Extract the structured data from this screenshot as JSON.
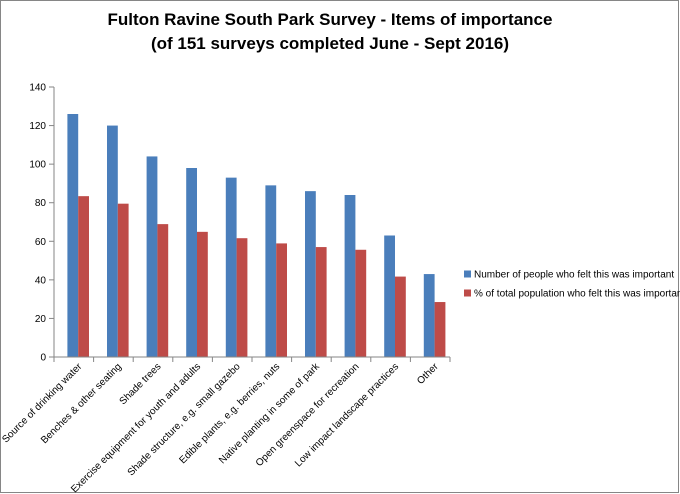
{
  "chart_data": {
    "type": "bar",
    "title_lines": [
      "Fulton Ravine South Park Survey - Items of importance",
      "(of 151 surveys completed June - Sept 2016)"
    ],
    "categories": [
      "Source of drinking water",
      "Benches & other seating",
      "Shade trees",
      "Exercise equipment for youth and adults",
      "Shade structure, e.g. small gazebo",
      "Edible plants, e.g. berries, nuts",
      "Native planting in some of park",
      "Open greenspace for recreation",
      "Low impact landscape practices",
      "Other"
    ],
    "series": [
      {
        "name": "Number of people who felt this was important",
        "color": "#4a7ebb",
        "values": [
          126,
          120,
          104,
          98,
          93,
          89,
          86,
          84,
          63,
          43
        ]
      },
      {
        "name": "% of total population who felt this was important",
        "color": "#be4b48",
        "values": [
          83.4,
          79.5,
          68.9,
          64.9,
          61.6,
          58.9,
          57.0,
          55.6,
          41.7,
          28.5
        ]
      }
    ],
    "y_ticks": [
      "0",
      "20",
      "40",
      "60",
      "80",
      "100",
      "120",
      "140"
    ],
    "ylim": [
      0,
      140
    ],
    "legend_position": "right",
    "grid": false
  }
}
